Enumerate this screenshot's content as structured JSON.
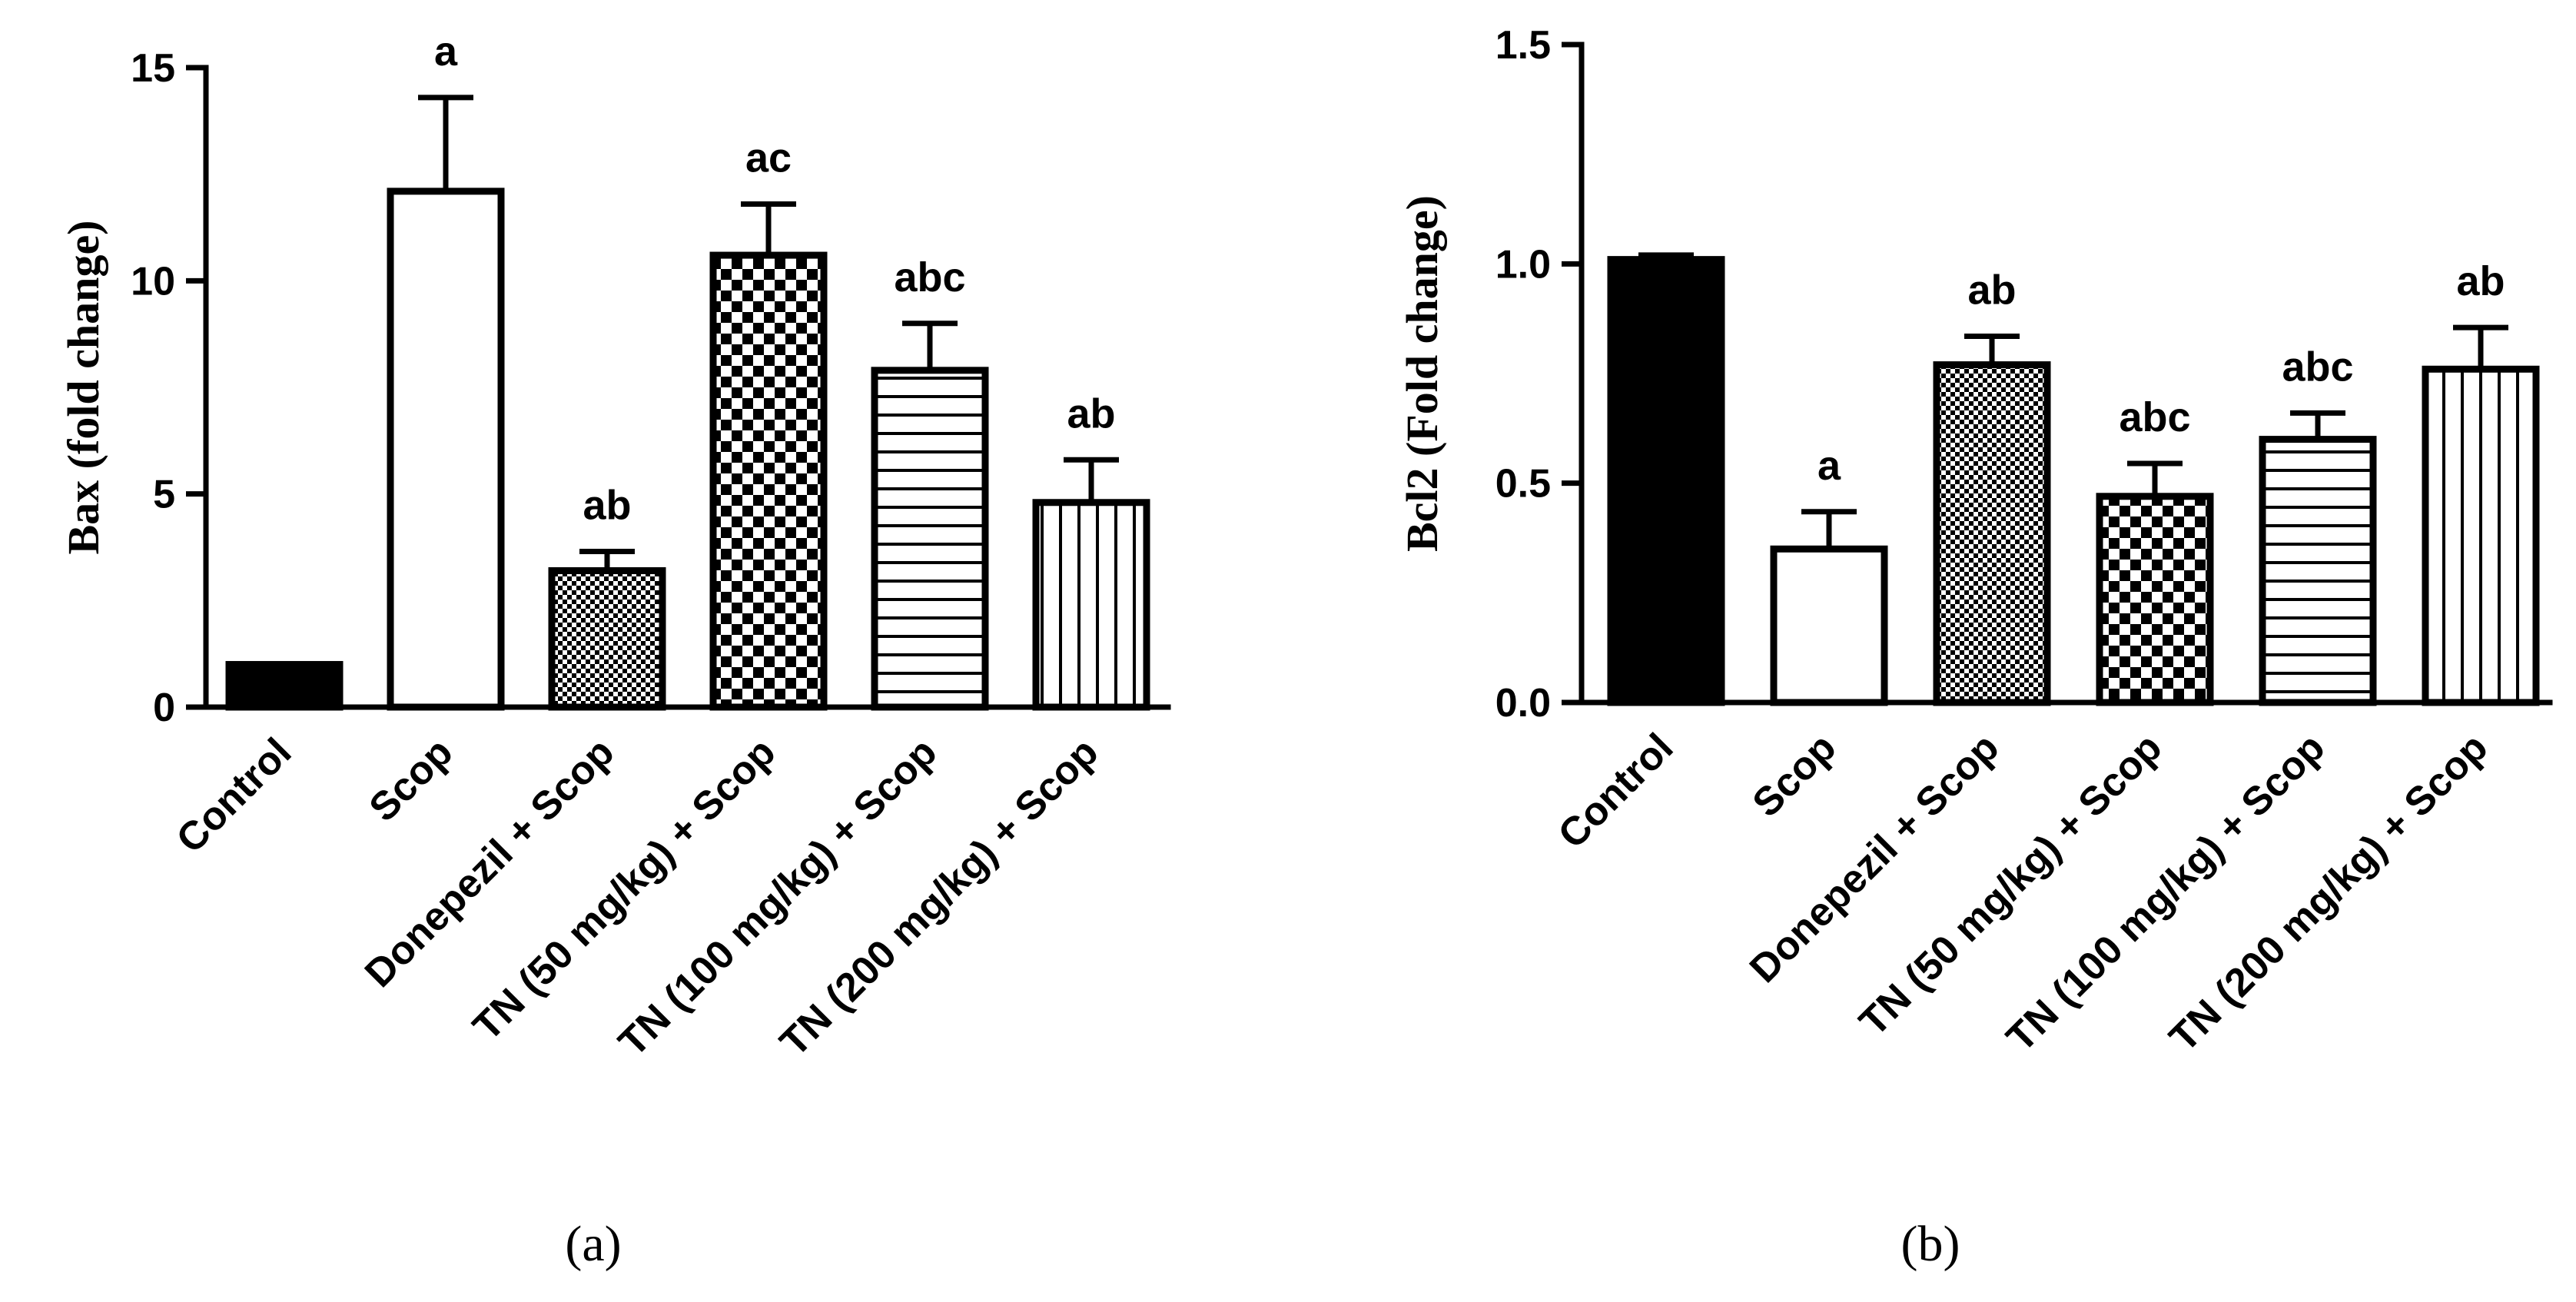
{
  "colors": {
    "ink": "#000000",
    "white": "#ffffff",
    "scop_outline": "#333333"
  },
  "chart_data": [
    {
      "type": "bar",
      "panel_label": "(a)",
      "ylabel": "Bax (fold change)",
      "xlabel": "",
      "ylim": [
        0,
        15
      ],
      "yticks": [
        0,
        5,
        10,
        15
      ],
      "categories": [
        "Control",
        "Scop",
        "Donepezil + Scop",
        "TN (50 mg/kg) + Scop",
        "TN (100 mg/kg) + Scop",
        "TN (200 mg/kg) + Scop"
      ],
      "values": [
        1.0,
        12.1,
        3.2,
        10.6,
        7.9,
        4.8
      ],
      "errors": [
        0.0,
        2.2,
        0.45,
        1.2,
        1.1,
        1.0
      ],
      "significance": [
        "",
        "a",
        "ab",
        "ac",
        "abc",
        "ab"
      ],
      "patterns": [
        "solid",
        "empty",
        "fine-check",
        "check",
        "horizontal",
        "vertical"
      ]
    },
    {
      "type": "bar",
      "panel_label": "(b)",
      "ylabel": "Bcl2 (Fold change)",
      "xlabel": "",
      "ylim": [
        0,
        1.5
      ],
      "yticks": [
        0.0,
        0.5,
        1.0,
        1.5
      ],
      "categories": [
        "Control",
        "Scop",
        "Donepezil + Scop",
        "TN (50 mg/kg) + Scop",
        "TN (100 mg/kg) + Scop",
        "TN (200 mg/kg) + Scop"
      ],
      "values": [
        1.01,
        0.35,
        0.77,
        0.47,
        0.6,
        0.76
      ],
      "errors": [
        0.01,
        0.085,
        0.065,
        0.075,
        0.06,
        0.095
      ],
      "significance": [
        "",
        "a",
        "ab",
        "abc",
        "abc",
        "ab"
      ],
      "patterns": [
        "solid",
        "empty",
        "fine-check",
        "check",
        "horizontal",
        "vertical"
      ]
    }
  ]
}
